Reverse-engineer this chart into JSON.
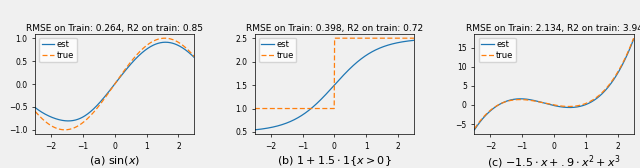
{
  "titles": [
    "RMSE on Train: 0.264, R2 on train: 0.85",
    "RMSE on Train: 0.398, R2 on train: 0.72",
    "RMSE on Train: 2.134, R2 on train: 3.94"
  ],
  "subtitles": [
    "(a) $\\sin(x)$",
    "(b) $1 + 1.5 \\cdot 1\\{x > 0\\}$",
    "(c) $-1.5 \\cdot x + .9 \\cdot x^2 + x^3$"
  ],
  "xlim": [
    -2.5,
    2.5
  ],
  "legend_labels": [
    "est",
    "true"
  ],
  "line_colors": [
    "#1f77b4",
    "#ff7f0e"
  ],
  "title_fontsize": 6.5,
  "subtitle_fontsize": 8,
  "legend_fontsize": 6,
  "tick_fontsize": 5.5,
  "background_color": "#f0f0f0"
}
